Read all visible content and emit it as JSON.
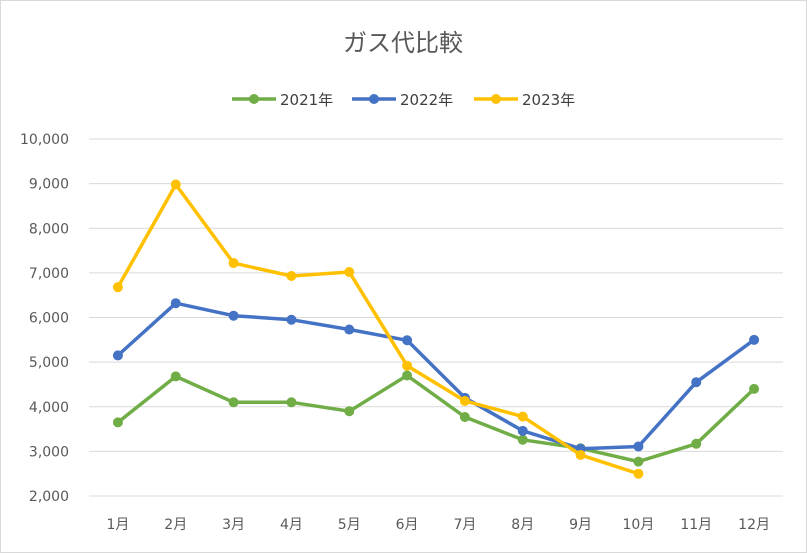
{
  "chart_data": {
    "type": "line",
    "title": "ガス代比較",
    "xlabel": "",
    "ylabel": "",
    "categories": [
      "1月",
      "2月",
      "3月",
      "4月",
      "5月",
      "6月",
      "7月",
      "8月",
      "9月",
      "10月",
      "11月",
      "12月"
    ],
    "ylim": [
      2000,
      10000
    ],
    "yticks": [
      2000,
      3000,
      4000,
      5000,
      6000,
      7000,
      8000,
      9000,
      10000
    ],
    "ytick_labels": [
      "2,000",
      "3,000",
      "4,000",
      "5,000",
      "6,000",
      "7,000",
      "8,000",
      "9,000",
      "10,000"
    ],
    "grid": true,
    "legend_position": "top",
    "series": [
      {
        "name": "2021年",
        "color": "#70ad47",
        "values": [
          3650,
          4680,
          4100,
          4100,
          3900,
          4700,
          3770,
          3260,
          3070,
          2770,
          3170,
          4400
        ]
      },
      {
        "name": "2022年",
        "color": "#4472c4",
        "values": [
          5150,
          6320,
          6040,
          5950,
          5730,
          5490,
          4200,
          3460,
          3060,
          3110,
          4550,
          5500
        ]
      },
      {
        "name": "2023年",
        "color": "#ffc000",
        "values": [
          6680,
          8980,
          7220,
          6930,
          7020,
          4920,
          4130,
          3780,
          2920,
          2500,
          null,
          null
        ]
      }
    ]
  }
}
